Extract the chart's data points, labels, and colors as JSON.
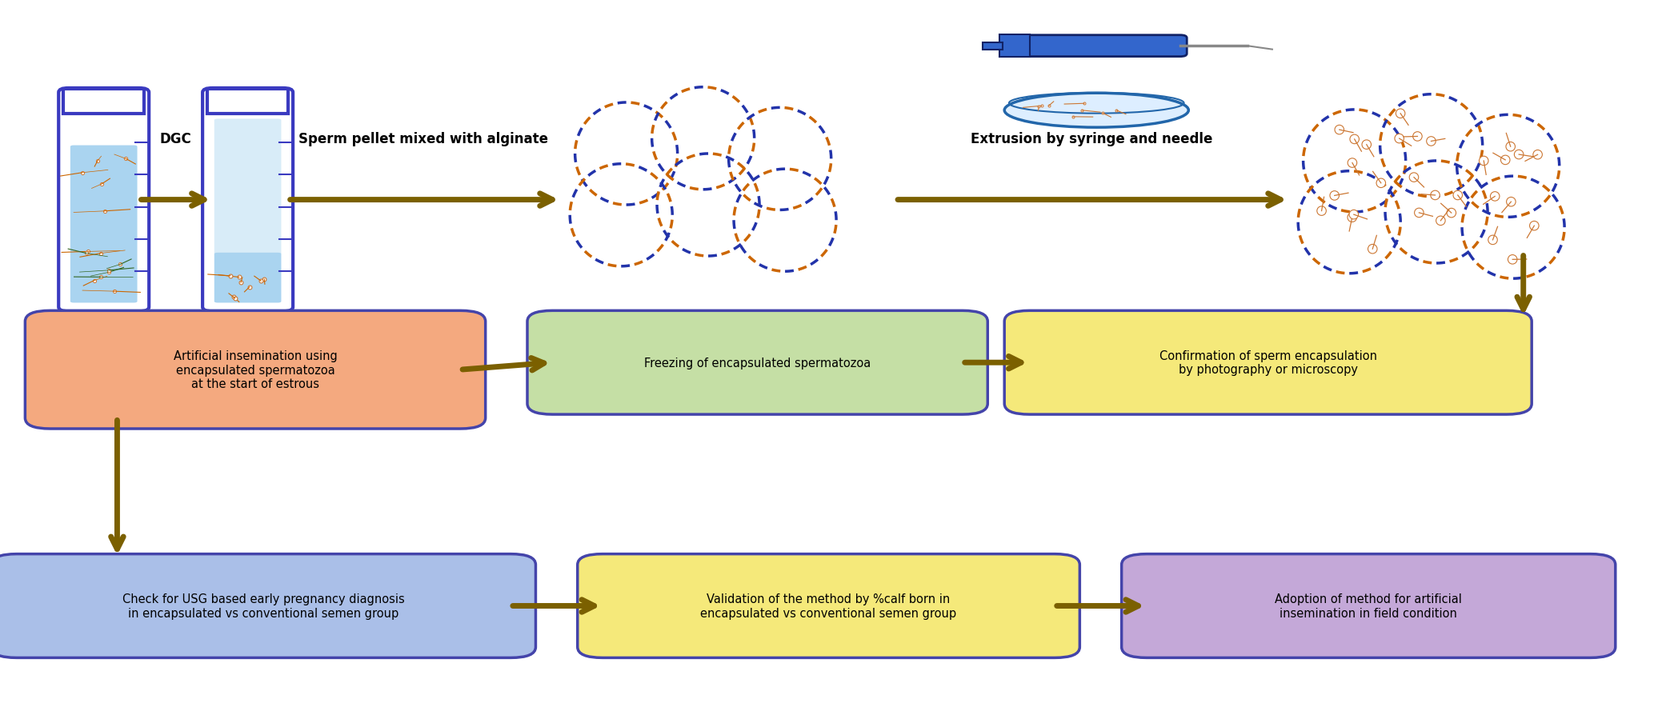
{
  "bg_color": "#ffffff",
  "arrow_color": "#7B6000",
  "box1_text": "Artificial insemination using\nencapsulated spermatozoa\nat the start of estrous",
  "box1_color": "#F4A97F",
  "box1_border": "#4444aa",
  "box2_text": "Freezing of encapsulated spermatozoa",
  "box2_color": "#C5DFA5",
  "box2_border": "#4444aa",
  "box3_text": "Confirmation of sperm encapsulation\nby photography or microscopy",
  "box3_color": "#F5E97A",
  "box3_border": "#4444aa",
  "box4_text": "Check for USG based early pregnancy diagnosis\nin encapsulated vs conventional semen group",
  "box4_color": "#AABFE8",
  "box4_border": "#4444aa",
  "box5_text": "Validation of the method by %calf born in\nencapsulated vs conventional semen group",
  "box5_color": "#F5E97A",
  "box5_border": "#4444aa",
  "box6_text": "Adoption of method for artificial\ninsemination in field condition",
  "box6_color": "#C4A8D8",
  "box6_border": "#4444aa",
  "label_dgc": "DGC",
  "label_sperm_pellet": "Sperm pellet mixed with alginate",
  "label_extrusion": "Extrusion by syringe and needle",
  "tube_color_border": "#3a3ac0",
  "tube_liquid_color": "#aad4f0"
}
